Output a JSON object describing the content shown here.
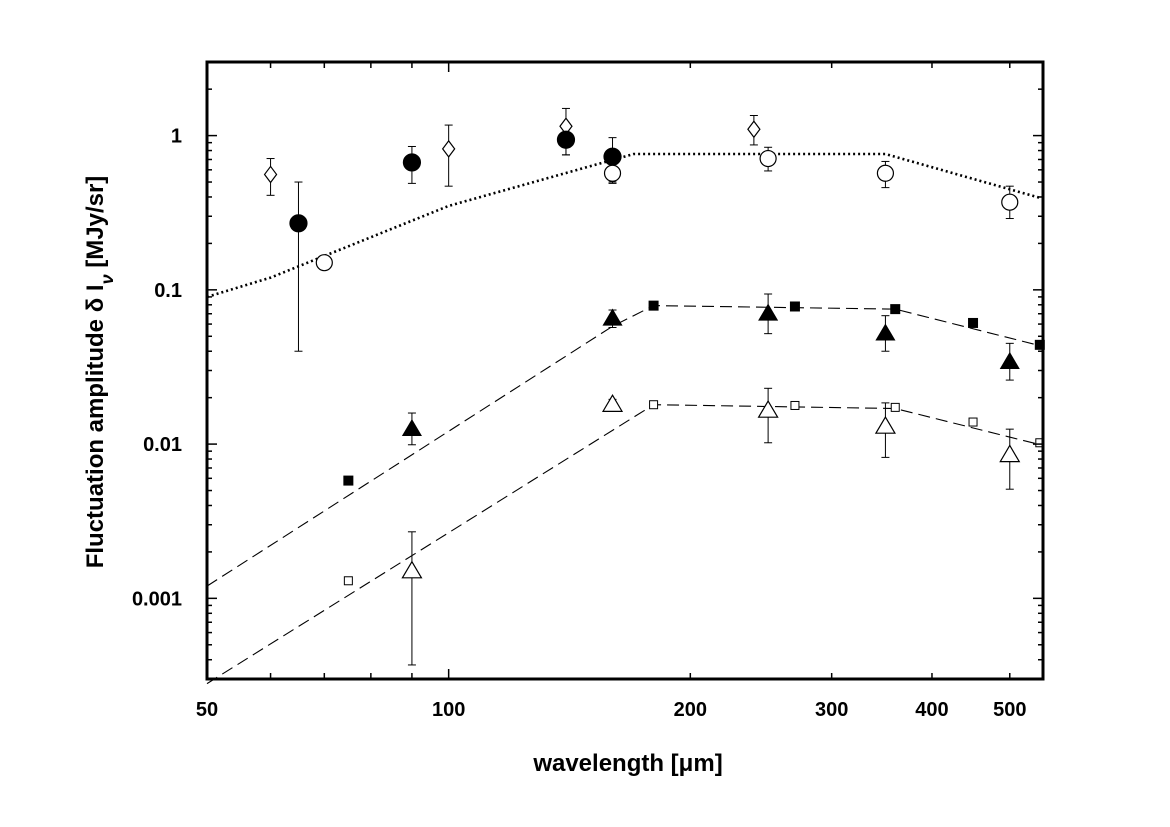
{
  "chart_data": {
    "type": "scatter",
    "title": "",
    "xlabel": "wavelength [μm]",
    "ylabel": "Fluctuation amplitude δ I",
    "ylabel_subscript": "ν",
    "ylabel_units": " [MJy/sr]",
    "x_scale": "log",
    "y_scale": "log",
    "xlim": [
      50,
      550
    ],
    "ylim": [
      0.0003,
      3
    ],
    "grid": false,
    "legend": "none",
    "x_ticks": [
      {
        "value": 50,
        "label": "50"
      },
      {
        "value": 100,
        "label": "100"
      },
      {
        "value": 200,
        "label": "200"
      },
      {
        "value": 300,
        "label": "300"
      },
      {
        "value": 400,
        "label": "400"
      },
      {
        "value": 500,
        "label": "500"
      }
    ],
    "y_ticks": [
      {
        "value": 0.001,
        "label": "0.001"
      },
      {
        "value": 0.01,
        "label": "0.01"
      },
      {
        "value": 0.1,
        "label": "0.1"
      },
      {
        "value": 1,
        "label": "1"
      }
    ],
    "curves": [
      {
        "name": "dotted-model",
        "style": "dotted",
        "x": [
          50,
          60,
          100,
          170,
          350,
          550
        ],
        "y": [
          0.09,
          0.12,
          0.35,
          0.76,
          0.76,
          0.39
        ]
      },
      {
        "name": "dashed-model-filled",
        "style": "dashed",
        "x": [
          50,
          160,
          180,
          360,
          550
        ],
        "y": [
          0.0012,
          0.058,
          0.079,
          0.075,
          0.043
        ]
      },
      {
        "name": "dashed-model-open",
        "style": "dashed",
        "x": [
          50,
          180,
          360,
          550
        ],
        "y": [
          0.00028,
          0.018,
          0.017,
          0.0098
        ]
      }
    ],
    "series": [
      {
        "name": "open-diamond",
        "marker": "diamond",
        "filled": false,
        "points": [
          {
            "x": 60,
            "y": 0.56,
            "err_lo": 0.41,
            "err_hi": 0.71
          },
          {
            "x": 100,
            "y": 0.82,
            "err_lo": 0.47,
            "err_hi": 1.17
          },
          {
            "x": 140,
            "y": 1.15,
            "err_lo": 0.75,
            "err_hi": 1.5
          },
          {
            "x": 240,
            "y": 1.1,
            "err_lo": 0.87,
            "err_hi": 1.35
          }
        ]
      },
      {
        "name": "filled-circle",
        "marker": "circle",
        "filled": true,
        "points": [
          {
            "x": 65,
            "y": 0.27,
            "err_lo": 0.04,
            "err_hi": 0.5
          },
          {
            "x": 90,
            "y": 0.67,
            "err_lo": 0.49,
            "err_hi": 0.85
          },
          {
            "x": 140,
            "y": 0.94,
            "err_lo": 0.75,
            "err_hi": 1.13
          },
          {
            "x": 160,
            "y": 0.73,
            "err_lo": 0.5,
            "err_hi": 0.97
          }
        ]
      },
      {
        "name": "open-circle",
        "marker": "circle",
        "filled": false,
        "points": [
          {
            "x": 70,
            "y": 0.15,
            "err_lo": 0.15,
            "err_hi": 0.15
          },
          {
            "x": 160,
            "y": 0.57,
            "err_lo": 0.49,
            "err_hi": 0.65
          },
          {
            "x": 250,
            "y": 0.71,
            "err_lo": 0.59,
            "err_hi": 0.84
          },
          {
            "x": 350,
            "y": 0.57,
            "err_lo": 0.46,
            "err_hi": 0.68
          },
          {
            "x": 500,
            "y": 0.37,
            "err_lo": 0.29,
            "err_hi": 0.47
          }
        ]
      },
      {
        "name": "filled-triangle",
        "marker": "triangle",
        "filled": true,
        "points": [
          {
            "x": 90,
            "y": 0.0125,
            "err_lo": 0.0099,
            "err_hi": 0.0159
          },
          {
            "x": 160,
            "y": 0.065,
            "err_lo": 0.057,
            "err_hi": 0.074
          },
          {
            "x": 250,
            "y": 0.07,
            "err_lo": 0.052,
            "err_hi": 0.094
          },
          {
            "x": 350,
            "y": 0.052,
            "err_lo": 0.04,
            "err_hi": 0.068
          },
          {
            "x": 500,
            "y": 0.034,
            "err_lo": 0.026,
            "err_hi": 0.045
          }
        ]
      },
      {
        "name": "filled-square",
        "marker": "square",
        "filled": true,
        "points": [
          {
            "x": 75,
            "y": 0.0058
          },
          {
            "x": 180,
            "y": 0.079
          },
          {
            "x": 270,
            "y": 0.078
          },
          {
            "x": 360,
            "y": 0.075
          },
          {
            "x": 450,
            "y": 0.061
          },
          {
            "x": 545,
            "y": 0.044
          }
        ]
      },
      {
        "name": "open-triangle",
        "marker": "triangle",
        "filled": false,
        "points": [
          {
            "x": 90,
            "y": 0.0015,
            "err_lo": 0.00037,
            "err_hi": 0.0027
          },
          {
            "x": 160,
            "y": 0.018,
            "err_lo": 0.0165,
            "err_hi": 0.0195
          },
          {
            "x": 250,
            "y": 0.0165,
            "err_lo": 0.0102,
            "err_hi": 0.023
          },
          {
            "x": 350,
            "y": 0.013,
            "err_lo": 0.0082,
            "err_hi": 0.0185
          },
          {
            "x": 500,
            "y": 0.0085,
            "err_lo": 0.0051,
            "err_hi": 0.0125
          }
        ]
      },
      {
        "name": "open-square",
        "marker": "square",
        "filled": false,
        "points": [
          {
            "x": 75,
            "y": 0.0013
          },
          {
            "x": 180,
            "y": 0.018
          },
          {
            "x": 270,
            "y": 0.0178
          },
          {
            "x": 360,
            "y": 0.0173
          },
          {
            "x": 450,
            "y": 0.0139
          },
          {
            "x": 545,
            "y": 0.0102
          }
        ]
      }
    ]
  }
}
